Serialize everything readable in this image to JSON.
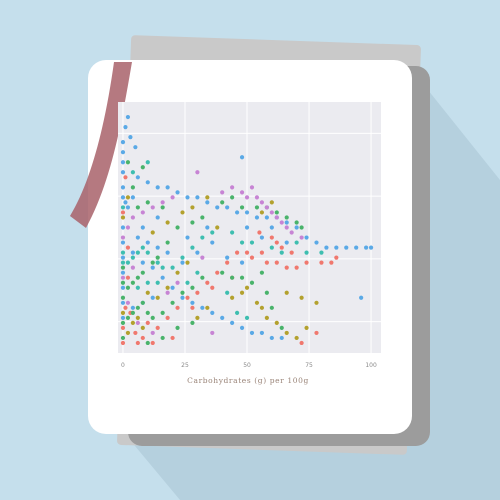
{
  "colors": {
    "background": "#c5dfec",
    "long_shadow": "#b5d0de",
    "back_sheet": "#c9c9c9",
    "back_sheet_dark": "#9c9c9c",
    "card": "#ffffff",
    "plot_bg": "#ebebf0",
    "grid": "#ffffff",
    "ribbon": "#a8616a"
  },
  "icons": [
    "bookmark-ribbon"
  ],
  "chart_data": {
    "type": "scatter",
    "title": "",
    "xlabel": "Carbohydrates (g) per 100g",
    "ylabel": "",
    "xlim": [
      -2,
      104
    ],
    "ylim": [
      0,
      100
    ],
    "x_ticks": [
      0,
      25,
      50,
      75,
      100
    ],
    "x_tick_labels": [
      "0",
      "25",
      "50",
      "75",
      "100"
    ],
    "grid": true,
    "legend": "none",
    "series": [
      {
        "color": "#f0786e",
        "points": [
          [
            0,
            4
          ],
          [
            0,
            10
          ],
          [
            1,
            18
          ],
          [
            2,
            30
          ],
          [
            3,
            16
          ],
          [
            5,
            8
          ],
          [
            8,
            6
          ],
          [
            10,
            12
          ],
          [
            14,
            10
          ],
          [
            18,
            14
          ],
          [
            22,
            18
          ],
          [
            26,
            22
          ],
          [
            30,
            24
          ],
          [
            34,
            28
          ],
          [
            38,
            32
          ],
          [
            42,
            36
          ],
          [
            46,
            40
          ],
          [
            50,
            40
          ],
          [
            52,
            38
          ],
          [
            56,
            40
          ],
          [
            58,
            36
          ],
          [
            62,
            36
          ],
          [
            66,
            34
          ],
          [
            70,
            34
          ],
          [
            74,
            36
          ],
          [
            80,
            36
          ],
          [
            84,
            36
          ],
          [
            86,
            38
          ],
          [
            62,
            44
          ],
          [
            64,
            42
          ],
          [
            68,
            40
          ],
          [
            55,
            48
          ],
          [
            60,
            46
          ],
          [
            2,
            42
          ],
          [
            0,
            56
          ],
          [
            6,
            4
          ],
          [
            12,
            4
          ],
          [
            20,
            6
          ],
          [
            28,
            18
          ],
          [
            36,
            26
          ],
          [
            44,
            30
          ],
          [
            72,
            4
          ],
          [
            78,
            8
          ],
          [
            1,
            70
          ]
        ]
      },
      {
        "color": "#5aa9e6",
        "points": [
          [
            0,
            84
          ],
          [
            0,
            80
          ],
          [
            0,
            76
          ],
          [
            0,
            72
          ],
          [
            0,
            66
          ],
          [
            0,
            62
          ],
          [
            1,
            60
          ],
          [
            2,
            58
          ],
          [
            4,
            62
          ],
          [
            6,
            70
          ],
          [
            10,
            68
          ],
          [
            14,
            66
          ],
          [
            18,
            66
          ],
          [
            22,
            64
          ],
          [
            26,
            62
          ],
          [
            30,
            62
          ],
          [
            34,
            60
          ],
          [
            38,
            58
          ],
          [
            42,
            58
          ],
          [
            46,
            56
          ],
          [
            50,
            56
          ],
          [
            54,
            54
          ],
          [
            58,
            54
          ],
          [
            62,
            54
          ],
          [
            66,
            52
          ],
          [
            70,
            50
          ],
          [
            74,
            46
          ],
          [
            78,
            44
          ],
          [
            82,
            42
          ],
          [
            86,
            42
          ],
          [
            90,
            42
          ],
          [
            94,
            42
          ],
          [
            98,
            42
          ],
          [
            100,
            42
          ],
          [
            0,
            50
          ],
          [
            0,
            44
          ],
          [
            0,
            38
          ],
          [
            0,
            32
          ],
          [
            0,
            26
          ],
          [
            0,
            20
          ],
          [
            0,
            14
          ],
          [
            4,
            40
          ],
          [
            8,
            36
          ],
          [
            12,
            34
          ],
          [
            16,
            30
          ],
          [
            20,
            26
          ],
          [
            24,
            22
          ],
          [
            28,
            20
          ],
          [
            32,
            18
          ],
          [
            36,
            16
          ],
          [
            40,
            14
          ],
          [
            44,
            12
          ],
          [
            48,
            10
          ],
          [
            52,
            8
          ],
          [
            56,
            8
          ],
          [
            60,
            6
          ],
          [
            64,
            6
          ],
          [
            4,
            18
          ],
          [
            8,
            20
          ],
          [
            12,
            22
          ],
          [
            6,
            46
          ],
          [
            10,
            44
          ],
          [
            14,
            42
          ],
          [
            18,
            40
          ],
          [
            24,
            36
          ],
          [
            30,
            40
          ],
          [
            36,
            44
          ],
          [
            42,
            38
          ],
          [
            48,
            36
          ],
          [
            34,
            50
          ],
          [
            26,
            46
          ],
          [
            14,
            54
          ],
          [
            8,
            50
          ],
          [
            50,
            50
          ],
          [
            56,
            46
          ],
          [
            60,
            50
          ],
          [
            66,
            44
          ],
          [
            48,
            78
          ],
          [
            96,
            22
          ],
          [
            2,
            94
          ],
          [
            1,
            90
          ],
          [
            3,
            86
          ],
          [
            5,
            82
          ]
        ]
      },
      {
        "color": "#49b36b",
        "points": [
          [
            0,
            12
          ],
          [
            2,
            14
          ],
          [
            4,
            16
          ],
          [
            6,
            18
          ],
          [
            8,
            20
          ],
          [
            10,
            16
          ],
          [
            12,
            14
          ],
          [
            16,
            16
          ],
          [
            20,
            20
          ],
          [
            24,
            24
          ],
          [
            28,
            26
          ],
          [
            32,
            30
          ],
          [
            40,
            32
          ],
          [
            44,
            30
          ],
          [
            48,
            30
          ],
          [
            52,
            28
          ],
          [
            56,
            32
          ],
          [
            0,
            34
          ],
          [
            0,
            28
          ],
          [
            0,
            22
          ],
          [
            2,
            26
          ],
          [
            4,
            28
          ],
          [
            6,
            30
          ],
          [
            8,
            32
          ],
          [
            12,
            36
          ],
          [
            14,
            38
          ],
          [
            18,
            44
          ],
          [
            22,
            50
          ],
          [
            28,
            52
          ],
          [
            32,
            54
          ],
          [
            40,
            60
          ],
          [
            44,
            62
          ],
          [
            48,
            58
          ],
          [
            54,
            58
          ],
          [
            58,
            58
          ],
          [
            62,
            56
          ],
          [
            66,
            54
          ],
          [
            70,
            52
          ],
          [
            72,
            50
          ],
          [
            10,
            60
          ],
          [
            6,
            58
          ],
          [
            4,
            66
          ],
          [
            8,
            74
          ],
          [
            2,
            76
          ],
          [
            16,
            58
          ],
          [
            60,
            18
          ],
          [
            58,
            24
          ],
          [
            64,
            10
          ],
          [
            10,
            4
          ],
          [
            16,
            6
          ],
          [
            22,
            10
          ],
          [
            28,
            12
          ],
          [
            0,
            6
          ]
        ]
      },
      {
        "color": "#c784d4",
        "points": [
          [
            0,
            46
          ],
          [
            2,
            50
          ],
          [
            4,
            54
          ],
          [
            8,
            56
          ],
          [
            12,
            58
          ],
          [
            16,
            60
          ],
          [
            20,
            62
          ],
          [
            40,
            64
          ],
          [
            44,
            66
          ],
          [
            48,
            64
          ],
          [
            50,
            62
          ],
          [
            52,
            66
          ],
          [
            54,
            62
          ],
          [
            56,
            60
          ],
          [
            58,
            58
          ],
          [
            60,
            56
          ],
          [
            62,
            54
          ],
          [
            64,
            52
          ],
          [
            66,
            50
          ],
          [
            68,
            48
          ],
          [
            72,
            46
          ],
          [
            30,
            72
          ],
          [
            18,
            24
          ],
          [
            22,
            28
          ],
          [
            0,
            30
          ],
          [
            4,
            34
          ],
          [
            32,
            38
          ],
          [
            12,
            8
          ],
          [
            6,
            12
          ],
          [
            2,
            20
          ],
          [
            36,
            8
          ]
        ]
      },
      {
        "color": "#b3a12e",
        "points": [
          [
            0,
            16
          ],
          [
            2,
            8
          ],
          [
            4,
            12
          ],
          [
            6,
            14
          ],
          [
            8,
            10
          ],
          [
            10,
            24
          ],
          [
            14,
            22
          ],
          [
            18,
            26
          ],
          [
            22,
            32
          ],
          [
            26,
            36
          ],
          [
            30,
            14
          ],
          [
            34,
            18
          ],
          [
            44,
            22
          ],
          [
            48,
            24
          ],
          [
            50,
            26
          ],
          [
            54,
            20
          ],
          [
            56,
            18
          ],
          [
            58,
            14
          ],
          [
            62,
            12
          ],
          [
            66,
            8
          ],
          [
            70,
            6
          ],
          [
            74,
            10
          ],
          [
            78,
            20
          ],
          [
            66,
            24
          ],
          [
            72,
            22
          ],
          [
            18,
            52
          ],
          [
            24,
            56
          ],
          [
            28,
            58
          ],
          [
            34,
            62
          ],
          [
            12,
            48
          ],
          [
            56,
            56
          ],
          [
            60,
            60
          ],
          [
            0,
            54
          ],
          [
            2,
            62
          ],
          [
            38,
            50
          ]
        ]
      },
      {
        "color": "#3ebeb0",
        "points": [
          [
            0,
            40
          ],
          [
            0,
            36
          ],
          [
            2,
            36
          ],
          [
            4,
            38
          ],
          [
            6,
            40
          ],
          [
            8,
            42
          ],
          [
            10,
            40
          ],
          [
            14,
            36
          ],
          [
            16,
            34
          ],
          [
            20,
            34
          ],
          [
            24,
            38
          ],
          [
            28,
            42
          ],
          [
            32,
            46
          ],
          [
            36,
            48
          ],
          [
            44,
            48
          ],
          [
            48,
            44
          ],
          [
            52,
            44
          ],
          [
            60,
            42
          ],
          [
            64,
            40
          ],
          [
            70,
            44
          ],
          [
            74,
            40
          ],
          [
            80,
            40
          ],
          [
            26,
            28
          ],
          [
            30,
            32
          ],
          [
            6,
            26
          ],
          [
            10,
            28
          ],
          [
            14,
            28
          ],
          [
            42,
            24
          ],
          [
            46,
            16
          ],
          [
            50,
            14
          ],
          [
            0,
            58
          ],
          [
            4,
            72
          ],
          [
            10,
            76
          ]
        ]
      }
    ]
  }
}
